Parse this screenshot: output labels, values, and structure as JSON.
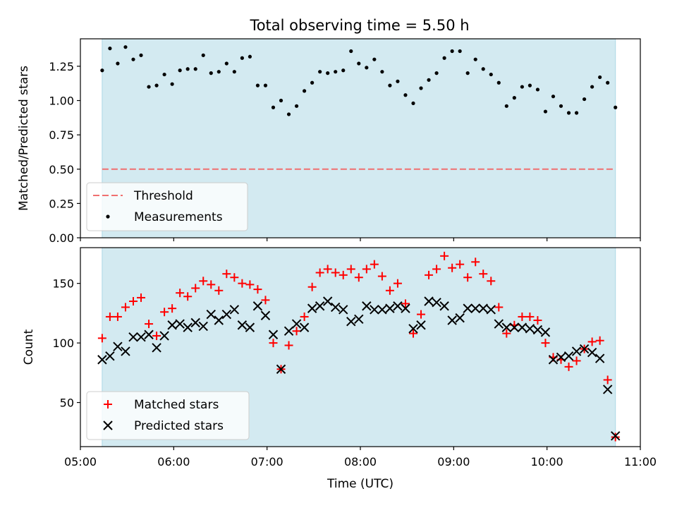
{
  "chart_data": [
    {
      "type": "scatter",
      "title": "Total observing time = 5.50 h",
      "xlabel": "",
      "ylabel": "Matched/Predicted stars",
      "xlim": [
        "05:00",
        "11:00"
      ],
      "ylim": [
        0,
        1.45
      ],
      "yticks": [
        "0.00",
        "0.25",
        "0.50",
        "0.75",
        "1.00",
        "1.25"
      ],
      "shaded_span": [
        "05:14",
        "10:44"
      ],
      "shade_color": "#d3eaf1",
      "legend_position": "lower-left",
      "threshold": {
        "name": "Threshold",
        "value": 0.5,
        "color": "#f07070"
      },
      "series": [
        {
          "name": "Measurements",
          "color": "#000000",
          "x": [
            "05:14",
            "05:19",
            "05:24",
            "05:29",
            "05:34",
            "05:39",
            "05:44",
            "05:49",
            "05:54",
            "05:59",
            "06:04",
            "06:09",
            "06:14",
            "06:19",
            "06:24",
            "06:29",
            "06:34",
            "06:39",
            "06:44",
            "06:49",
            "06:54",
            "06:59",
            "07:04",
            "07:09",
            "07:14",
            "07:19",
            "07:24",
            "07:29",
            "07:34",
            "07:39",
            "07:44",
            "07:49",
            "07:54",
            "07:59",
            "08:04",
            "08:09",
            "08:14",
            "08:19",
            "08:24",
            "08:29",
            "08:34",
            "08:39",
            "08:44",
            "08:49",
            "08:54",
            "08:59",
            "09:04",
            "09:09",
            "09:14",
            "09:19",
            "09:24",
            "09:29",
            "09:34",
            "09:39",
            "09:44",
            "09:49",
            "09:54",
            "09:59",
            "10:04",
            "10:09",
            "10:14",
            "10:19",
            "10:24",
            "10:29",
            "10:34",
            "10:39",
            "10:44"
          ],
          "y": [
            1.22,
            1.38,
            1.27,
            1.39,
            1.3,
            1.33,
            1.1,
            1.11,
            1.19,
            1.12,
            1.22,
            1.23,
            1.23,
            1.33,
            1.2,
            1.21,
            1.27,
            1.21,
            1.31,
            1.32,
            1.11,
            1.11,
            0.95,
            1.0,
            0.9,
            0.96,
            1.07,
            1.13,
            1.21,
            1.2,
            1.21,
            1.22,
            1.36,
            1.27,
            1.24,
            1.3,
            1.21,
            1.11,
            1.14,
            1.04,
            0.98,
            1.09,
            1.15,
            1.2,
            1.31,
            1.36,
            1.36,
            1.2,
            1.3,
            1.23,
            1.19,
            1.13,
            0.96,
            1.02,
            1.1,
            1.11,
            1.08,
            0.92,
            1.03,
            0.96,
            0.91,
            0.91,
            1.01,
            1.1,
            1.17,
            1.13,
            0.95
          ]
        }
      ]
    },
    {
      "type": "scatter",
      "title": "",
      "xlabel": "Time (UTC)",
      "ylabel": "Count",
      "xlim": [
        "05:00",
        "11:00"
      ],
      "xticks": [
        "05:00",
        "06:00",
        "07:00",
        "08:00",
        "09:00",
        "10:00",
        "11:00"
      ],
      "ylim": [
        13,
        180
      ],
      "yticks": [
        "50",
        "100",
        "150"
      ],
      "shaded_span": [
        "05:14",
        "10:44"
      ],
      "shade_color": "#d3eaf1",
      "legend_position": "lower-left",
      "series": [
        {
          "name": "Matched stars",
          "marker": "plus",
          "color": "#ff0000",
          "x": [
            "05:14",
            "05:19",
            "05:24",
            "05:29",
            "05:34",
            "05:39",
            "05:44",
            "05:49",
            "05:54",
            "05:59",
            "06:04",
            "06:09",
            "06:14",
            "06:19",
            "06:24",
            "06:29",
            "06:34",
            "06:39",
            "06:44",
            "06:49",
            "06:54",
            "06:59",
            "07:04",
            "07:09",
            "07:14",
            "07:19",
            "07:24",
            "07:29",
            "07:34",
            "07:39",
            "07:44",
            "07:49",
            "07:54",
            "07:59",
            "08:04",
            "08:09",
            "08:14",
            "08:19",
            "08:24",
            "08:29",
            "08:34",
            "08:39",
            "08:44",
            "08:49",
            "08:54",
            "08:59",
            "09:04",
            "09:09",
            "09:14",
            "09:19",
            "09:24",
            "09:29",
            "09:34",
            "09:39",
            "09:44",
            "09:49",
            "09:54",
            "09:59",
            "10:04",
            "10:09",
            "10:14",
            "10:19",
            "10:24",
            "10:29",
            "10:34",
            "10:39",
            "10:44"
          ],
          "y": [
            104,
            122,
            122,
            130,
            135,
            138,
            116,
            106,
            126,
            129,
            142,
            139,
            146,
            152,
            149,
            144,
            158,
            155,
            150,
            149,
            145,
            136,
            100,
            78,
            98,
            110,
            122,
            147,
            159,
            162,
            159,
            157,
            162,
            155,
            162,
            166,
            156,
            144,
            150,
            133,
            108,
            124,
            157,
            162,
            173,
            163,
            166,
            155,
            168,
            158,
            152,
            130,
            108,
            115,
            122,
            122,
            119,
            100,
            88,
            86,
            80,
            85,
            95,
            101,
            102,
            69,
            21
          ]
        },
        {
          "name": "Predicted stars",
          "marker": "x",
          "color": "#000000",
          "x": [
            "05:14",
            "05:19",
            "05:24",
            "05:29",
            "05:34",
            "05:39",
            "05:44",
            "05:49",
            "05:54",
            "05:59",
            "06:04",
            "06:09",
            "06:14",
            "06:19",
            "06:24",
            "06:29",
            "06:34",
            "06:39",
            "06:44",
            "06:49",
            "06:54",
            "06:59",
            "07:04",
            "07:09",
            "07:14",
            "07:19",
            "07:24",
            "07:29",
            "07:34",
            "07:39",
            "07:44",
            "07:49",
            "07:54",
            "07:59",
            "08:04",
            "08:09",
            "08:14",
            "08:19",
            "08:24",
            "08:29",
            "08:34",
            "08:39",
            "08:44",
            "08:49",
            "08:54",
            "08:59",
            "09:04",
            "09:09",
            "09:14",
            "09:19",
            "09:24",
            "09:29",
            "09:34",
            "09:39",
            "09:44",
            "09:49",
            "09:54",
            "09:59",
            "10:04",
            "10:09",
            "10:14",
            "10:19",
            "10:24",
            "10:29",
            "10:34",
            "10:39",
            "10:44"
          ],
          "y": [
            86,
            89,
            97,
            93,
            105,
            105,
            107,
            96,
            106,
            115,
            116,
            113,
            117,
            114,
            124,
            119,
            124,
            128,
            115,
            113,
            131,
            123,
            107,
            78,
            110,
            116,
            113,
            129,
            131,
            135,
            130,
            128,
            118,
            120,
            131,
            128,
            128,
            129,
            131,
            129,
            112,
            115,
            135,
            134,
            131,
            119,
            121,
            129,
            129,
            129,
            128,
            116,
            113,
            113,
            113,
            112,
            111,
            109,
            86,
            88,
            89,
            93,
            95,
            92,
            87,
            61,
            22
          ]
        }
      ]
    }
  ]
}
